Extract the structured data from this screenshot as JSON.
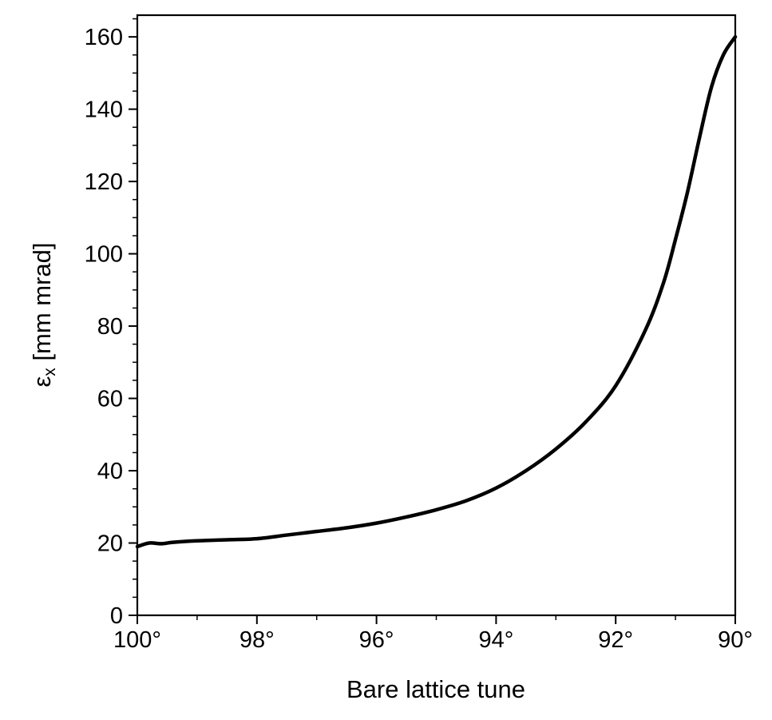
{
  "chart_data": {
    "type": "line",
    "xlabel": "Bare lattice tune",
    "ylabel_main": "ε",
    "ylabel_sub": "x",
    "ylabel_rest": " [mm mrad]",
    "xlim": [
      100,
      90
    ],
    "ylim": [
      0,
      166
    ],
    "x_ticks": [
      {
        "value": 100,
        "label": "100°"
      },
      {
        "value": 98,
        "label": "98°"
      },
      {
        "value": 96,
        "label": "96°"
      },
      {
        "value": 94,
        "label": "94°"
      },
      {
        "value": 92,
        "label": "92°"
      },
      {
        "value": 90,
        "label": "90°"
      }
    ],
    "x_minor_ticks": [
      99,
      97,
      95,
      93,
      91
    ],
    "y_ticks": [
      {
        "value": 0,
        "label": "0"
      },
      {
        "value": 20,
        "label": "20"
      },
      {
        "value": 40,
        "label": "40"
      },
      {
        "value": 60,
        "label": "60"
      },
      {
        "value": 80,
        "label": "80"
      },
      {
        "value": 100,
        "label": "100"
      },
      {
        "value": 120,
        "label": "120"
      },
      {
        "value": 140,
        "label": "140"
      },
      {
        "value": 160,
        "label": "160"
      }
    ],
    "y_minor_ticks": [
      5,
      10,
      15,
      25,
      30,
      35,
      45,
      50,
      55,
      65,
      70,
      75,
      85,
      90,
      95,
      105,
      110,
      115,
      125,
      130,
      135,
      145,
      150,
      155,
      165
    ],
    "grid": false,
    "series": [
      {
        "color": "#000000",
        "x": [
          100,
          99.8,
          99.6,
          99.4,
          99.0,
          98.5,
          98.0,
          97.5,
          97.0,
          96.5,
          96.0,
          95.5,
          95.0,
          94.5,
          94.0,
          93.5,
          93.0,
          92.5,
          92.0,
          91.5,
          91.2,
          91.0,
          90.8,
          90.6,
          90.4,
          90.2,
          90.0
        ],
        "y": [
          19,
          20,
          19.8,
          20.2,
          20.6,
          20.9,
          21.2,
          22.2,
          23.2,
          24.2,
          25.5,
          27.2,
          29.2,
          31.7,
          35.2,
          40,
          46,
          53.5,
          63.5,
          79,
          92,
          104,
          117,
          132,
          146,
          155,
          160
        ]
      }
    ]
  }
}
